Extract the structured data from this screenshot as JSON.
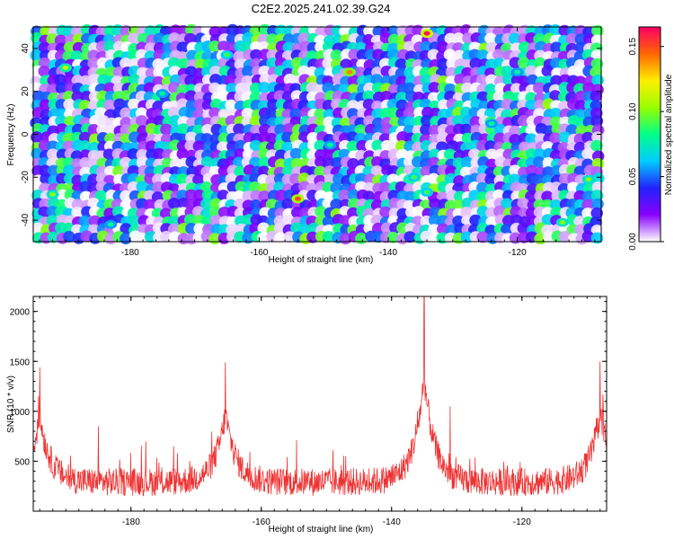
{
  "chart_data": [
    {
      "type": "heatmap",
      "title": "C2E2.2025.241.02.39.G24",
      "xlabel": "Height of straight line (km)",
      "ylabel": "Frequency (Hz)",
      "xlim": [
        -195,
        -107
      ],
      "ylim": [
        -50,
        50
      ],
      "xticks": [
        -180,
        -160,
        -140,
        -120
      ],
      "xtick_labels": [
        "-180",
        "-160",
        "-140",
        "-120"
      ],
      "yticks": [
        -40,
        -20,
        0,
        20,
        40
      ],
      "ytick_labels": [
        "-40",
        "-20",
        "0",
        "20",
        "40"
      ],
      "colorbar": {
        "label": "Normalized spectral amplitude",
        "range": [
          0.0,
          0.165
        ],
        "ticks": [
          0.0,
          0.05,
          0.1,
          0.15
        ],
        "tick_labels": [
          "0.00",
          "0.05",
          "0.10",
          "0.15"
        ],
        "colors": [
          "#ffffff",
          "#8800ff",
          "#2222ff",
          "#00ccff",
          "#00ff88",
          "#99ff00",
          "#ffee00",
          "#ff6600",
          "#ff0066"
        ]
      },
      "hotspots": [
        {
          "x": -134,
          "y": 47,
          "value": 0.16
        },
        {
          "x": -154,
          "y": -30,
          "value": 0.15
        },
        {
          "x": -146,
          "y": 29,
          "value": 0.14
        },
        {
          "x": -190,
          "y": 31,
          "value": 0.11
        },
        {
          "x": -192,
          "y": -28,
          "value": 0.1
        },
        {
          "x": -109,
          "y": -21,
          "value": 0.1
        },
        {
          "x": -113,
          "y": -41,
          "value": 0.1
        },
        {
          "x": -134,
          "y": -27,
          "value": 0.09
        },
        {
          "x": -136,
          "y": -20,
          "value": 0.09
        },
        {
          "x": -165,
          "y": 37,
          "value": 0.09
        },
        {
          "x": -120,
          "y": 29,
          "value": 0.08
        },
        {
          "x": -149,
          "y": -5,
          "value": 0.08
        },
        {
          "x": -183,
          "y": -42,
          "value": 0.08
        },
        {
          "x": -175,
          "y": 19,
          "value": 0.08
        },
        {
          "x": -124,
          "y": 5,
          "value": 0.08
        }
      ]
    },
    {
      "type": "line",
      "xlabel": "Height of straight line (km)",
      "ylabel": "SNR (10 * v/v)",
      "xlim": [
        -195,
        -107
      ],
      "ylim": [
        0,
        2150
      ],
      "xticks": [
        -180,
        -160,
        -140,
        -120
      ],
      "xtick_labels": [
        "-180",
        "-160",
        "-140",
        "-120"
      ],
      "yticks": [
        500,
        1000,
        1500,
        2000
      ],
      "ytick_labels": [
        "500",
        "1000",
        "1500",
        "2000"
      ],
      "color": "#ee3333",
      "baseline": 250,
      "noise": 280,
      "peaks": [
        {
          "x": -194,
          "y": 1440
        },
        {
          "x": -165.5,
          "y": 1490
        },
        {
          "x": -135,
          "y": 2150
        },
        {
          "x": -108,
          "y": 1500
        }
      ],
      "secondary_peaks": [
        {
          "x": -185,
          "y": 850
        },
        {
          "x": -131,
          "y": 1050
        },
        {
          "x": -107.5,
          "y": 1020
        }
      ]
    }
  ]
}
